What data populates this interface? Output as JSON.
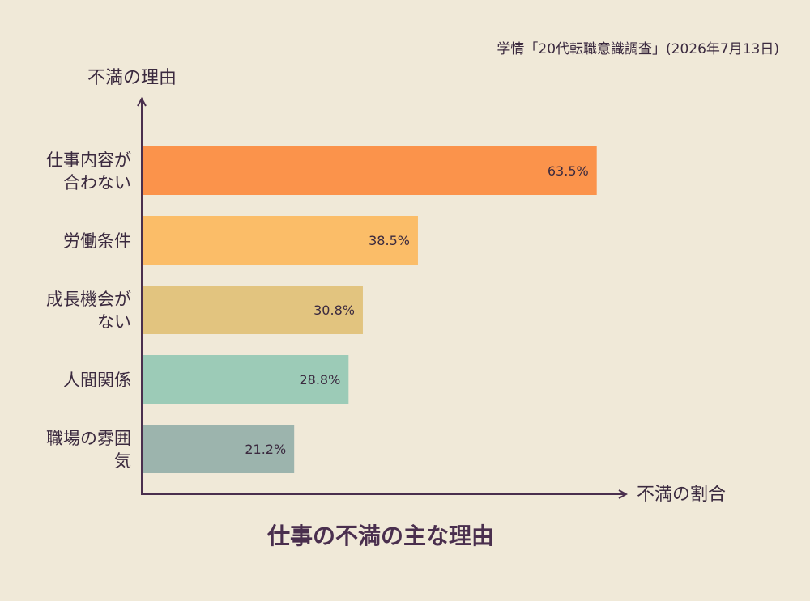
{
  "source_note": "学情「20代転職意識調査」(2026年7月13日)",
  "chart_data": {
    "type": "bar",
    "orientation": "horizontal",
    "title": "仕事の不満の主な理由",
    "ylabel": "不満の理由",
    "xlabel": "不満の割合",
    "categories": [
      [
        "仕事内容が",
        "合わない"
      ],
      [
        "労働条件"
      ],
      [
        "成長機会が",
        "ない"
      ],
      [
        "人間関係"
      ],
      [
        "職場の雰囲",
        "気"
      ]
    ],
    "values": [
      63.5,
      38.5,
      30.8,
      28.8,
      21.2
    ],
    "value_labels": [
      "63.5%",
      "38.5%",
      "30.8%",
      "28.8%",
      "21.2%"
    ],
    "colors": [
      "#fb934b",
      "#fbbd68",
      "#e2c47f",
      "#9ccbb7",
      "#9cb4ad"
    ],
    "xlim": [
      0,
      100
    ],
    "grid": false,
    "legend": "none"
  }
}
